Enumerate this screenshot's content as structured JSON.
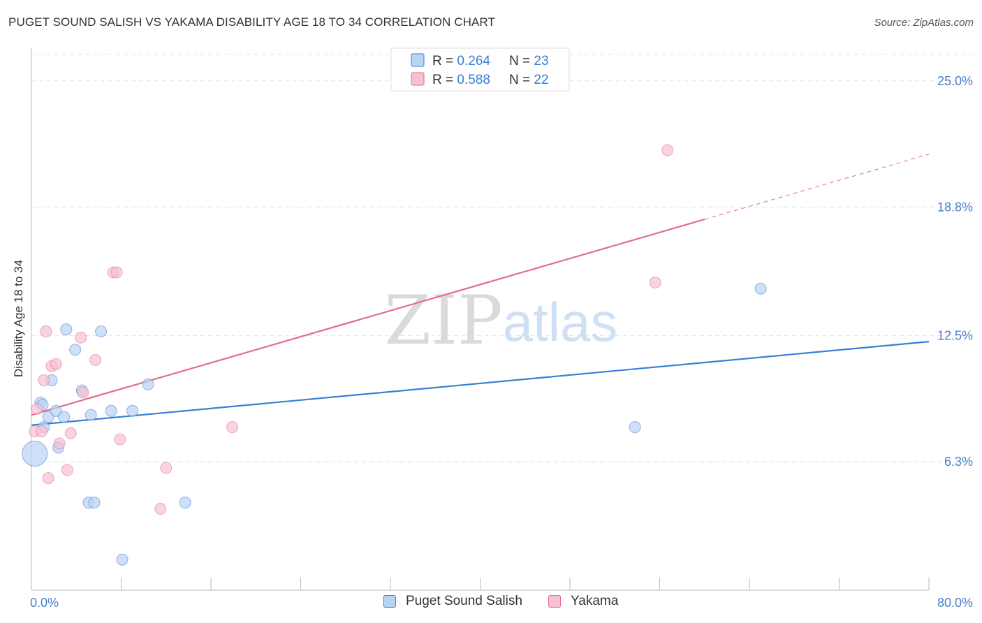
{
  "header": {
    "title": "PUGET SOUND SALISH VS YAKAMA DISABILITY AGE 18 TO 34 CORRELATION CHART",
    "source": "Source: ZipAtlas.com"
  },
  "watermark": {
    "zip": "ZIP",
    "atlas": "atlas"
  },
  "colors": {
    "blue": "#3a7fd5",
    "blue_fill": "#b9d3f3",
    "pink": "#e26b92",
    "pink_fill": "#f6c1d2",
    "axis_text": "#4a7fc9",
    "grid": "#e2e2e2"
  },
  "chart_data": {
    "type": "scatter",
    "title": "PUGET SOUND SALISH VS YAKAMA DISABILITY AGE 18 TO 34 CORRELATION CHART",
    "xlabel": "",
    "ylabel": "Disability Age 18 to 34",
    "xlim": [
      0,
      80
    ],
    "ylim": [
      0,
      26.5
    ],
    "x_tick_labels": [
      "0.0%",
      "80.0%"
    ],
    "y_ticks": [
      6.3,
      12.5,
      18.8,
      25.0
    ],
    "y_tick_labels": [
      "6.3%",
      "12.5%",
      "18.8%",
      "25.0%"
    ],
    "grid": true,
    "legend_position": "top-center",
    "stats": [
      {
        "r_label": "R = ",
        "r_value": "0.264",
        "n_label": "N = ",
        "n_value": "23"
      },
      {
        "r_label": "R = ",
        "r_value": "0.588",
        "n_label": "N = ",
        "n_value": "22"
      }
    ],
    "series": [
      {
        "name": "Puget Sound Salish",
        "color": "#3a7fd5",
        "points": [
          [
            0.3,
            6.7
          ],
          [
            0.8,
            9.2
          ],
          [
            1.0,
            9.1
          ],
          [
            1.1,
            8.0
          ],
          [
            1.5,
            8.5
          ],
          [
            1.8,
            10.3
          ],
          [
            2.2,
            8.8
          ],
          [
            2.4,
            7.0
          ],
          [
            2.9,
            8.5
          ],
          [
            3.1,
            12.8
          ],
          [
            3.9,
            11.8
          ],
          [
            4.5,
            9.8
          ],
          [
            5.1,
            4.3
          ],
          [
            5.3,
            8.6
          ],
          [
            5.6,
            4.3
          ],
          [
            6.2,
            12.7
          ],
          [
            7.1,
            8.8
          ],
          [
            8.1,
            1.5
          ],
          [
            9.0,
            8.8
          ],
          [
            10.4,
            10.1
          ],
          [
            13.7,
            4.3
          ],
          [
            53.8,
            8.0
          ],
          [
            65.0,
            14.8
          ]
        ],
        "trend": {
          "x": [
            0,
            80
          ],
          "y": [
            8.1,
            12.2
          ]
        }
      },
      {
        "name": "Yakama",
        "color": "#e26b92",
        "points": [
          [
            0.3,
            7.8
          ],
          [
            0.5,
            8.9
          ],
          [
            0.9,
            7.8
          ],
          [
            1.1,
            10.3
          ],
          [
            1.3,
            12.7
          ],
          [
            1.5,
            5.5
          ],
          [
            1.8,
            11.0
          ],
          [
            2.2,
            11.1
          ],
          [
            2.5,
            7.2
          ],
          [
            3.2,
            5.9
          ],
          [
            3.5,
            7.7
          ],
          [
            4.4,
            12.4
          ],
          [
            4.6,
            9.7
          ],
          [
            5.7,
            11.3
          ],
          [
            7.3,
            15.6
          ],
          [
            7.6,
            15.6
          ],
          [
            7.9,
            7.4
          ],
          [
            11.5,
            4.0
          ],
          [
            12.0,
            6.0
          ],
          [
            17.9,
            8.0
          ],
          [
            55.6,
            15.1
          ],
          [
            56.7,
            21.6
          ]
        ],
        "trend": {
          "x": [
            0,
            60
          ],
          "y": [
            8.6,
            18.2
          ]
        },
        "trend_dashed": {
          "x": [
            60,
            80
          ],
          "y": [
            18.2,
            21.4
          ]
        }
      }
    ]
  }
}
